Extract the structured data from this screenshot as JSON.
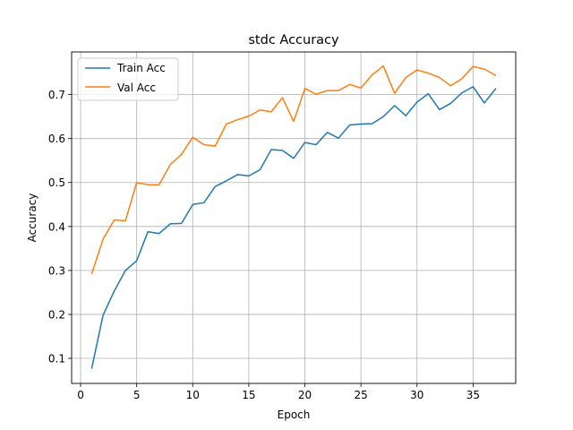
{
  "chart_data": {
    "type": "line",
    "title": "stdc Accuracy",
    "xlabel": "Epoch",
    "ylabel": "Accuracy",
    "xlim": [
      -0.8,
      38.8
    ],
    "ylim": [
      0.043,
      0.797
    ],
    "xticks": [
      0,
      5,
      10,
      15,
      20,
      25,
      30,
      35
    ],
    "yticks": [
      0.1,
      0.2,
      0.3,
      0.4,
      0.5,
      0.6,
      0.7
    ],
    "grid": true,
    "legend_position": "top-left",
    "x": [
      1,
      2,
      3,
      4,
      5,
      6,
      7,
      8,
      9,
      10,
      11,
      12,
      13,
      14,
      15,
      16,
      17,
      18,
      19,
      20,
      21,
      22,
      23,
      24,
      25,
      26,
      27,
      28,
      29,
      30,
      31,
      32,
      33,
      34,
      35,
      36,
      37
    ],
    "series": [
      {
        "name": "Train Acc",
        "color": "#1f77b4",
        "values": [
          0.078,
          0.198,
          0.253,
          0.3,
          0.322,
          0.388,
          0.384,
          0.406,
          0.407,
          0.45,
          0.454,
          0.491,
          0.504,
          0.518,
          0.515,
          0.529,
          0.575,
          0.573,
          0.555,
          0.591,
          0.586,
          0.614,
          0.601,
          0.631,
          0.633,
          0.634,
          0.65,
          0.675,
          0.652,
          0.683,
          0.702,
          0.666,
          0.68,
          0.704,
          0.718,
          0.681,
          0.713
        ]
      },
      {
        "name": "Val Acc",
        "color": "#ff7f0e",
        "values": [
          0.293,
          0.371,
          0.415,
          0.413,
          0.5,
          0.495,
          0.495,
          0.541,
          0.564,
          0.603,
          0.586,
          0.583,
          0.633,
          0.643,
          0.651,
          0.665,
          0.661,
          0.693,
          0.639,
          0.714,
          0.701,
          0.709,
          0.709,
          0.723,
          0.715,
          0.745,
          0.765,
          0.703,
          0.739,
          0.756,
          0.749,
          0.739,
          0.72,
          0.736,
          0.764,
          0.758,
          0.744
        ]
      }
    ]
  }
}
